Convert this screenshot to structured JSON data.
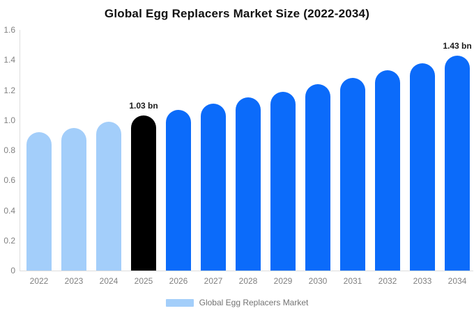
{
  "chart_data": {
    "type": "bar",
    "title": "Global Egg Replacers Market Size (2022-2034)",
    "categories": [
      "2022",
      "2023",
      "2024",
      "2025",
      "2026",
      "2027",
      "2028",
      "2029",
      "2030",
      "2031",
      "2032",
      "2033",
      "2034"
    ],
    "series": [
      {
        "name": "Global Egg Replacers Market",
        "values": [
          0.92,
          0.95,
          0.99,
          1.03,
          1.07,
          1.11,
          1.15,
          1.19,
          1.24,
          1.28,
          1.33,
          1.38,
          1.43
        ]
      }
    ],
    "unit": "bn",
    "xlabel": "",
    "ylabel": "",
    "ylim": [
      0,
      1.6
    ],
    "y_ticks": [
      "1.6",
      "1.4",
      "1.2",
      "1.0",
      "0.8",
      "0.6",
      "0.4",
      "0.2",
      "0"
    ],
    "y_tick_values": [
      1.6,
      1.4,
      1.2,
      1.0,
      0.8,
      0.6,
      0.4,
      0.2,
      0
    ],
    "grid": false,
    "legend_position": "bottom",
    "annotations": [
      {
        "category": "2025",
        "text": "1.03 bn",
        "value": 1.03
      },
      {
        "category": "2034",
        "text": "1.43 bn",
        "value": 1.43
      }
    ],
    "bar_colors": [
      "#A3CEFA",
      "#A3CEFA",
      "#A3CEFA",
      "#000000",
      "#0B6BFA",
      "#0B6BFA",
      "#0B6BFA",
      "#0B6BFA",
      "#0B6BFA",
      "#0B6BFA",
      "#0B6BFA",
      "#0B6BFA",
      "#0B6BFA"
    ],
    "colors": {
      "historical_bar": "#A3CEFA",
      "current_year_bar": "#000000",
      "forecast_bar": "#0B6BFA",
      "axis_line": "#DDDDDD",
      "tick_text": "#808080",
      "title_text": "#111111",
      "annotation_text": "#1A1A1A",
      "legend_text": "#737373",
      "background": "#FFFFFF"
    }
  },
  "legend": {
    "label": "Global Egg Replacers Market"
  }
}
